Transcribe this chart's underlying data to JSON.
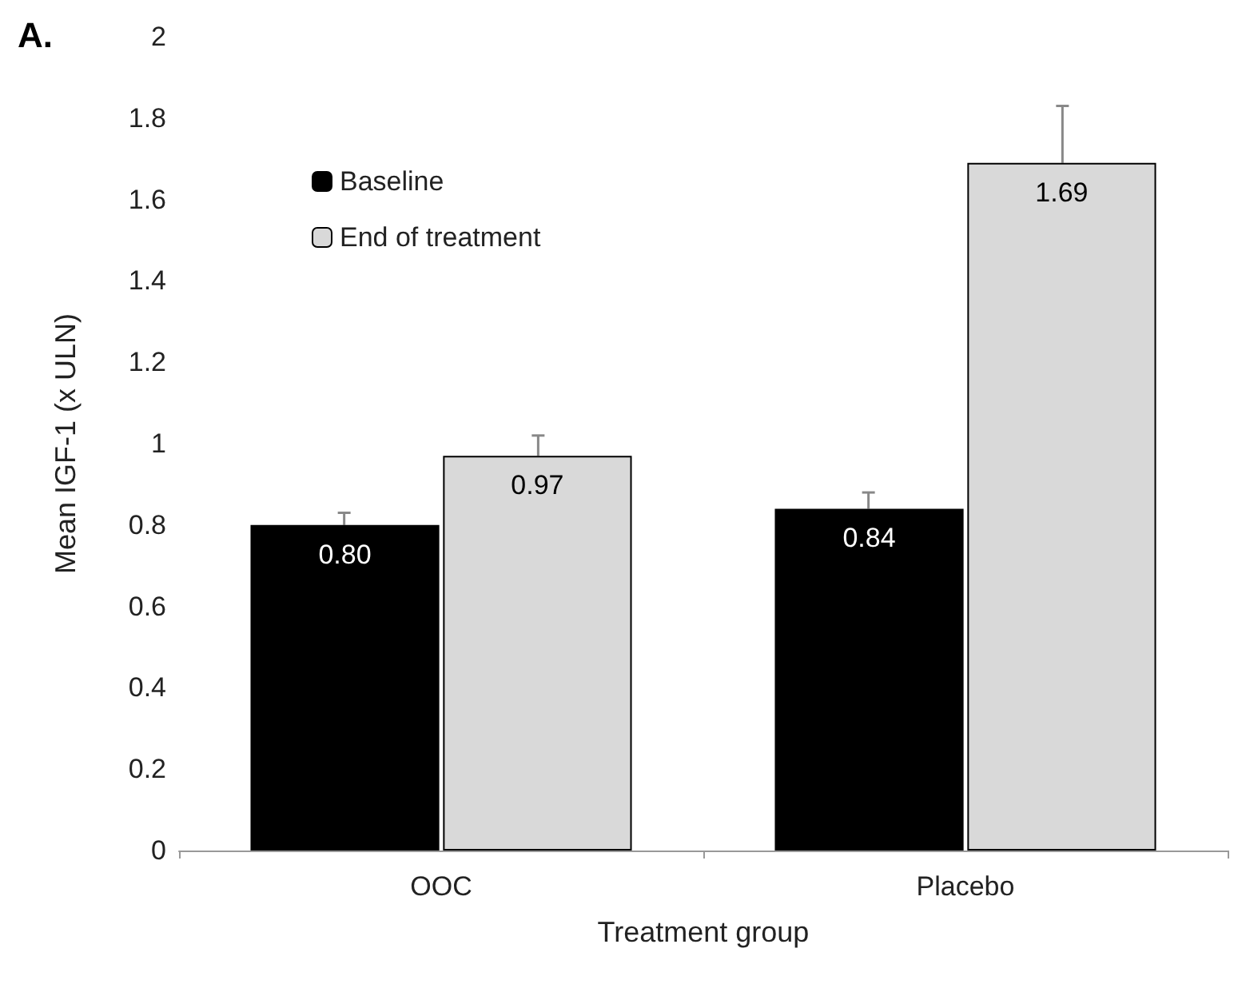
{
  "chart_data": {
    "type": "bar",
    "title": "A.",
    "xlabel": "Treatment group",
    "ylabel": "Mean IGF-1 (x ULN)",
    "categories": [
      "OOC",
      "Placebo"
    ],
    "series": [
      {
        "name": "Baseline",
        "color": "#000000",
        "values": [
          0.8,
          0.84
        ],
        "value_labels": [
          "0.80",
          "0.84"
        ],
        "errors": [
          [
            0.8,
            0.83
          ],
          [
            0.84,
            0.88
          ]
        ]
      },
      {
        "name": "End of treatment",
        "color": "#d9d9d9",
        "values": [
          0.97,
          1.69
        ],
        "value_labels": [
          "0.97",
          "1.69"
        ],
        "errors": [
          [
            0.97,
            1.02
          ],
          [
            1.69,
            1.83
          ]
        ]
      }
    ],
    "ylim": [
      0,
      2
    ],
    "yticks": [
      0,
      0.2,
      0.4,
      0.6,
      0.8,
      1,
      1.2,
      1.4,
      1.6,
      1.8,
      2
    ],
    "grid": false,
    "legend": "top left"
  }
}
